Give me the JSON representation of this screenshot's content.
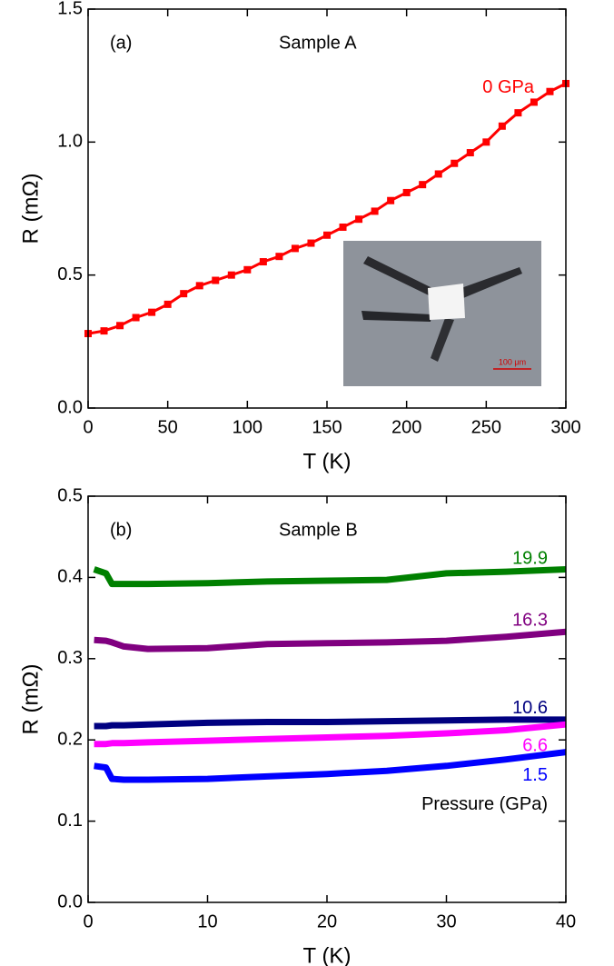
{
  "chart_data": [
    {
      "type": "line",
      "panel_label": "(a)",
      "annotation": "Sample A",
      "xlabel": "T (K)",
      "ylabel": "R (mΩ)",
      "inset_label": "100 μm",
      "xlim": [
        0,
        300
      ],
      "ylim": [
        0,
        1.5
      ],
      "xticks": [
        0,
        50,
        100,
        150,
        200,
        250,
        300
      ],
      "yticks": [
        {
          "value": 0,
          "label": "0.0"
        },
        0.5,
        {
          "value": 1,
          "label": "1.0"
        },
        1.5
      ],
      "x": [
        0,
        10,
        20,
        30,
        40,
        50,
        60,
        70,
        80,
        90,
        100,
        110,
        120,
        130,
        140,
        150,
        160,
        170,
        180,
        190,
        200,
        210,
        220,
        230,
        240,
        250,
        260,
        270,
        280,
        290,
        300
      ],
      "series": [
        {
          "name": "0 GPa",
          "color": "#ff0000",
          "values": [
            0.28,
            0.29,
            0.31,
            0.34,
            0.36,
            0.39,
            0.43,
            0.46,
            0.48,
            0.5,
            0.52,
            0.55,
            0.57,
            0.6,
            0.62,
            0.65,
            0.68,
            0.71,
            0.74,
            0.78,
            0.81,
            0.84,
            0.88,
            0.92,
            0.96,
            1.0,
            1.06,
            1.11,
            1.15,
            1.19,
            1.22
          ]
        }
      ]
    },
    {
      "type": "line",
      "panel_label": "(b)",
      "annotation": "Sample B",
      "legend_title": "Pressure (GPa)",
      "xlabel": "T (K)",
      "ylabel": "R (mΩ)",
      "xlim": [
        0,
        40
      ],
      "ylim": [
        0,
        0.5
      ],
      "xticks": [
        0,
        10,
        20,
        30,
        40
      ],
      "yticks": [
        {
          "value": 0,
          "label": "0.0"
        },
        0.1,
        0.2,
        0.3,
        0.4,
        0.5
      ],
      "x": [
        0.5,
        1.5,
        2,
        3,
        5,
        10,
        15,
        20,
        25,
        30,
        35,
        40
      ],
      "series": [
        {
          "name": "19.9",
          "color": "#008000",
          "values": [
            0.41,
            0.405,
            0.392,
            0.392,
            0.392,
            0.393,
            0.395,
            0.396,
            0.397,
            0.405,
            0.407,
            0.41
          ]
        },
        {
          "name": "16.3",
          "color": "#800080",
          "values": [
            0.323,
            0.322,
            0.32,
            0.315,
            0.312,
            0.313,
            0.318,
            0.319,
            0.32,
            0.322,
            0.327,
            0.333
          ]
        },
        {
          "name": "10.6",
          "color": "#000080",
          "values": [
            0.217,
            0.217,
            0.218,
            0.218,
            0.219,
            0.221,
            0.222,
            0.222,
            0.223,
            0.224,
            0.225,
            0.225
          ]
        },
        {
          "name": "6.6",
          "color": "#ff00ff",
          "values": [
            0.195,
            0.195,
            0.196,
            0.196,
            0.197,
            0.199,
            0.201,
            0.203,
            0.205,
            0.208,
            0.212,
            0.219
          ]
        },
        {
          "name": "1.5",
          "color": "#0000ff",
          "values": [
            0.168,
            0.166,
            0.152,
            0.151,
            0.151,
            0.152,
            0.155,
            0.158,
            0.162,
            0.168,
            0.176,
            0.185
          ]
        }
      ]
    }
  ]
}
